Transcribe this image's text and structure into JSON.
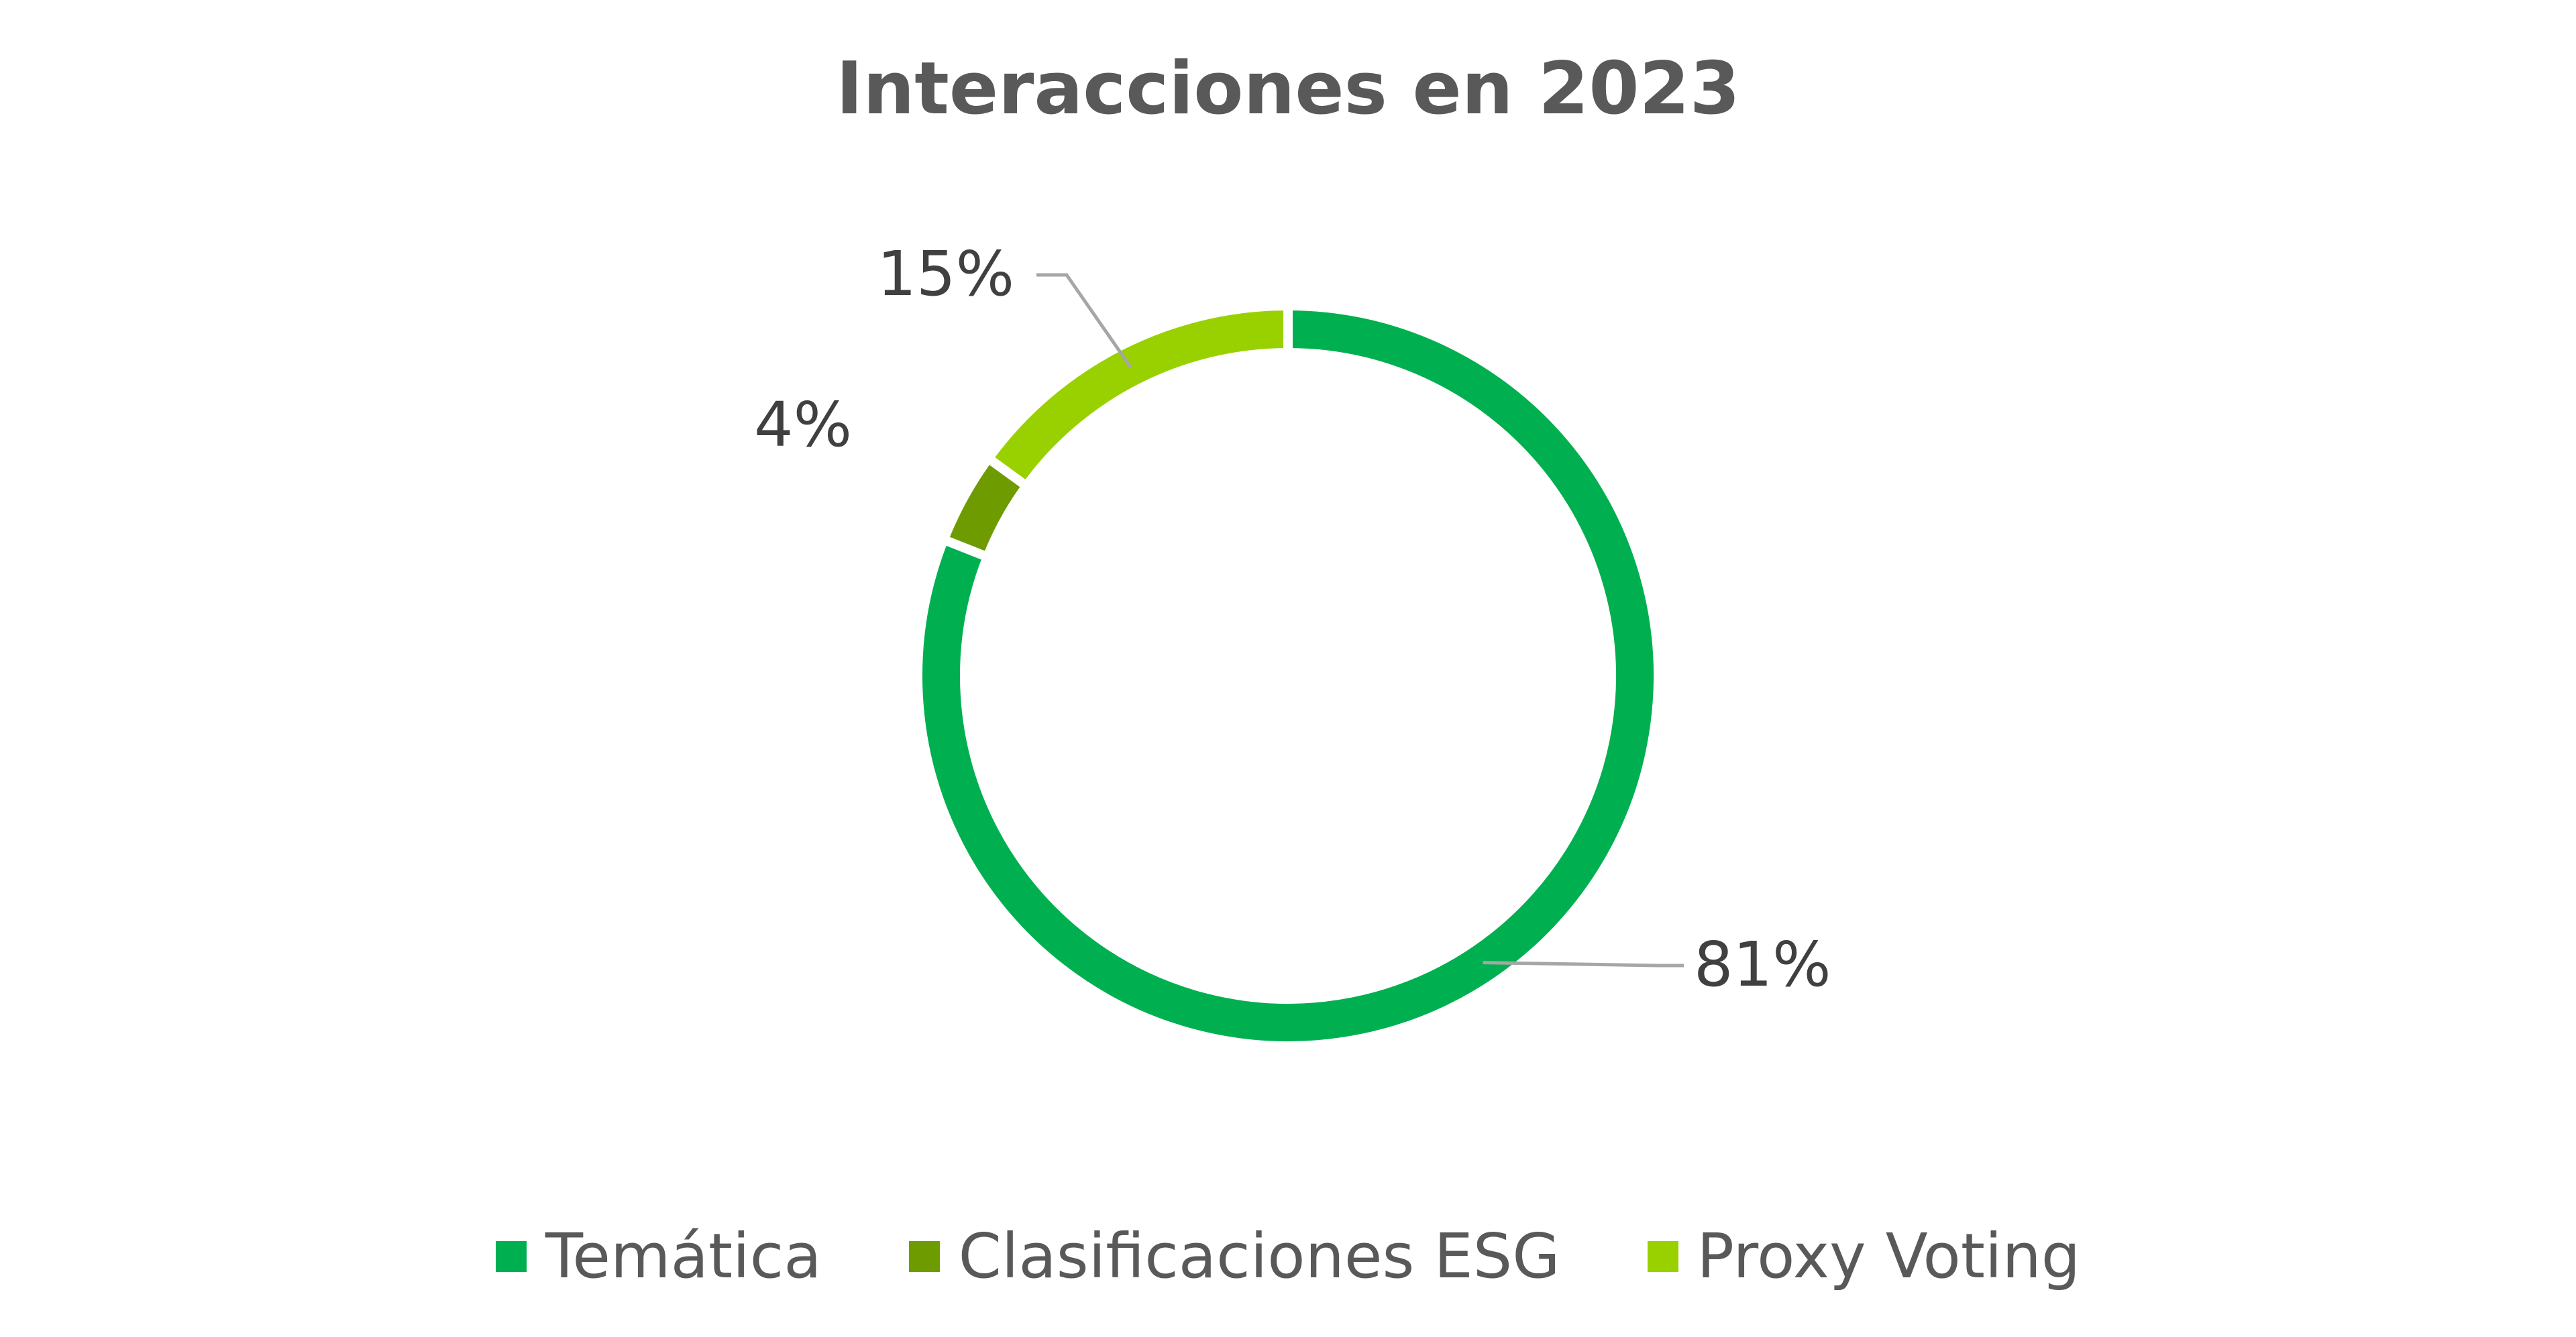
{
  "chart_data": {
    "type": "pie",
    "title": "Interacciones en 2023",
    "style": "donut",
    "legend_position": "bottom",
    "categories": [
      "Temática",
      "Clasificaciones ESG",
      "Proxy Voting"
    ],
    "values": [
      81,
      4,
      15
    ],
    "labels": [
      "81%",
      "4%",
      "15%"
    ],
    "colors": [
      "#00B050",
      "#6E9B00",
      "#99D100"
    ]
  }
}
